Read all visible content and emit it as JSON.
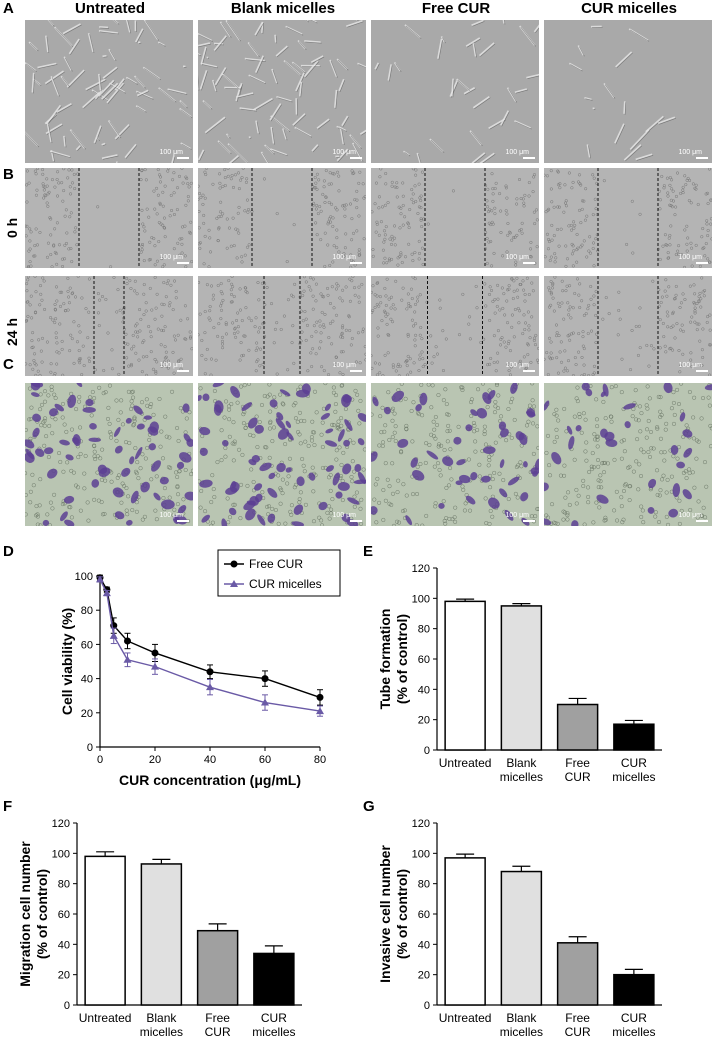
{
  "panel_labels": {
    "a": "A",
    "b": "B",
    "c": "C",
    "d": "D",
    "e": "E",
    "f": "F",
    "g": "G"
  },
  "column_headers": [
    "Untreated",
    "Blank micelles",
    "Free CUR",
    "CUR micelles"
  ],
  "row_labels": {
    "t0": "0 h",
    "t24": "24 h"
  },
  "scale_bar_text": "100 μm",
  "colors": {
    "tube_bg": "#a9a9a9",
    "scratch_bg": "#b4b4b4",
    "invasion_bg": "#b9c5b2",
    "stain": "#5c3f93",
    "bar_untreated": "#ffffff",
    "bar_blank": "#e0e0e0",
    "bar_free": "#a0a0a0",
    "bar_cur": "#000000",
    "line_free": "#000000",
    "line_cur": "#6a5aa6"
  },
  "chart_data": [
    {
      "id": "D",
      "type": "line",
      "xlabel": "CUR concentration (μg/mL)",
      "ylabel": "Cell viability (%)",
      "xlim": [
        0,
        80
      ],
      "ylim": [
        0,
        100
      ],
      "xticks": [
        0,
        20,
        40,
        60,
        80
      ],
      "yticks": [
        0,
        20,
        40,
        60,
        80,
        100
      ],
      "legend_position": "top-right",
      "series": [
        {
          "name": "Free CUR",
          "marker": "circle",
          "x": [
            0,
            2.5,
            5,
            10,
            20,
            40,
            60,
            80
          ],
          "y": [
            99,
            92,
            71,
            62,
            55,
            44,
            40,
            29
          ],
          "err": [
            1.5,
            1.5,
            4.5,
            4.5,
            5,
            4,
            4.5,
            4.5
          ]
        },
        {
          "name": "CUR micelles",
          "marker": "triangle",
          "x": [
            0,
            2.5,
            5,
            10,
            20,
            40,
            60,
            80
          ],
          "y": [
            98,
            90,
            65,
            51,
            47,
            35,
            26,
            21
          ],
          "err": [
            1.5,
            1.5,
            4.5,
            4,
            4.5,
            4.5,
            4.5,
            3
          ]
        }
      ]
    },
    {
      "id": "E",
      "type": "bar",
      "ylabel": "Tube formation (% of control)",
      "ylabel_lines": [
        "Tube formation",
        "(% of control)"
      ],
      "categories": [
        [
          "Untreated"
        ],
        [
          "Blank",
          "micelles"
        ],
        [
          "Free",
          "CUR"
        ],
        [
          "CUR",
          "micelles"
        ]
      ],
      "values": [
        98,
        95,
        30,
        17
      ],
      "err": [
        1.5,
        1.5,
        4,
        2.5
      ],
      "ylim": [
        0,
        120
      ],
      "yticks": [
        0,
        20,
        40,
        60,
        80,
        100,
        120
      ]
    },
    {
      "id": "F",
      "type": "bar",
      "ylabel": "Migration cell number (% of control)",
      "ylabel_lines": [
        "Migration cell number",
        "(% of control)"
      ],
      "categories": [
        [
          "Untreated"
        ],
        [
          "Blank",
          "micelles"
        ],
        [
          "Free",
          "CUR"
        ],
        [
          "CUR",
          "micelles"
        ]
      ],
      "values": [
        98,
        93,
        49,
        34
      ],
      "err": [
        3,
        3,
        4.5,
        5
      ],
      "ylim": [
        0,
        120
      ],
      "yticks": [
        0,
        20,
        40,
        60,
        80,
        100,
        120
      ]
    },
    {
      "id": "G",
      "type": "bar",
      "ylabel": "Invasive cell number (% of control)",
      "ylabel_lines": [
        "Invasive cell number",
        "(% of control)"
      ],
      "categories": [
        [
          "Untreated"
        ],
        [
          "Blank",
          "micelles"
        ],
        [
          "Free",
          "CUR"
        ],
        [
          "CUR",
          "micelles"
        ]
      ],
      "values": [
        97,
        88,
        41,
        20
      ],
      "err": [
        2.5,
        3.5,
        4,
        3.5
      ],
      "ylim": [
        0,
        120
      ],
      "yticks": [
        0,
        20,
        40,
        60,
        80,
        100,
        120
      ]
    }
  ]
}
